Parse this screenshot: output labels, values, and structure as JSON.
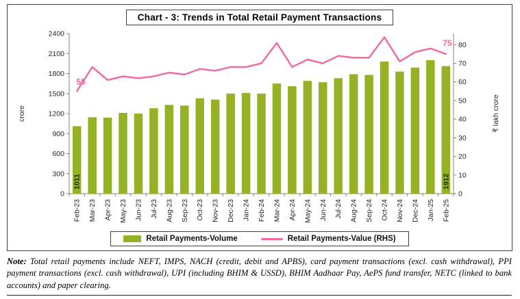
{
  "title": "Chart - 3: Trends in Total Retail Payment Transactions",
  "chart_data": {
    "type": "bar+line",
    "categories": [
      "Feb-23",
      "Mar-23",
      "Apr-23",
      "May-23",
      "Jun-23",
      "Jul-23",
      "Aug-23",
      "Sep-23",
      "Oct-23",
      "Nov-23",
      "Dec-23",
      "Jan-24",
      "Feb-24",
      "Mar-24",
      "Apr-24",
      "May-24",
      "Jun-24",
      "Jul-24",
      "Aug-24",
      "Sep-24",
      "Oct-24",
      "Nov-24",
      "Dec-24",
      "Jan-25",
      "Feb-25"
    ],
    "series": [
      {
        "name": "Retail Payments-Volume",
        "type": "bar",
        "axis": "left",
        "color": "#94b223",
        "values": [
          1011,
          1145,
          1140,
          1210,
          1200,
          1280,
          1330,
          1320,
          1430,
          1410,
          1500,
          1510,
          1500,
          1650,
          1610,
          1690,
          1670,
          1730,
          1790,
          1780,
          1980,
          1830,
          1890,
          2000,
          1912
        ],
        "data_labels": "first_last"
      },
      {
        "name": "Retail Payments-Value (RHS)",
        "type": "line",
        "axis": "right",
        "color": "#f2679f",
        "values": [
          55,
          68,
          61,
          63,
          62,
          63,
          65,
          64,
          67,
          66,
          68,
          68,
          70,
          81,
          68,
          72,
          70,
          74,
          73,
          73,
          84,
          71,
          76,
          78,
          75
        ],
        "data_labels": "first_last"
      }
    ],
    "left_axis": {
      "title": "crore",
      "min": 0,
      "max": 2400,
      "step": 300
    },
    "right_axis": {
      "title": "₹ lakh crore",
      "min": 0,
      "tick_max": 80,
      "step": 10,
      "scale_max": 86
    },
    "grid": false,
    "legend_position": "bottom",
    "annotations": {
      "first_bar": "1011",
      "last_bar": "1912",
      "first_line": "55",
      "last_line": "75"
    }
  },
  "note": {
    "label": "Note:",
    "text": "Total retail payments include NEFT, IMPS, NACH (credit, debit and APBS), card payment transactions (excl. cash withdrawal), PPI payment transactions (excl. cash withdrawal), UPI (including BHIM & USSD), BHIM Aadhaar Pay, AePS fund transfer, NETC (linked to bank accounts) and paper clearing."
  }
}
